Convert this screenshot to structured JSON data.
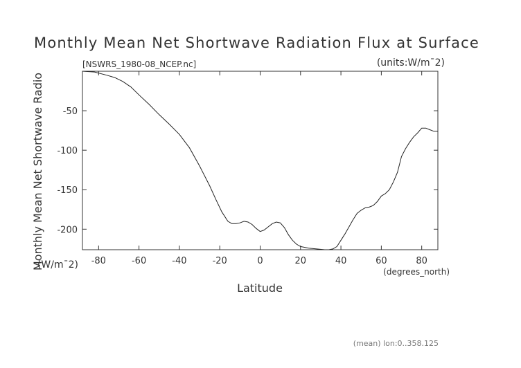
{
  "page": {
    "title": "Monthly Mean Net Shortwave Radiation Flux at Surface",
    "source_file": "[NSWRS_1980-08_NCEP.nc]",
    "units_note": "(units:W/m¯2)",
    "footer_note": "(mean) lon:0..358.125"
  },
  "chart_data": {
    "type": "line",
    "title": "Monthly Mean Net Shortwave Radiation Flux at Surface",
    "xlabel": "Latitude",
    "xunits": "(degrees_north)",
    "ylabel": "Monthly Mean Net Shortwave Radio",
    "yunits": "(W/m¯2)",
    "xlim": [
      -88,
      88
    ],
    "ylim": [
      -226,
      0
    ],
    "x_ticks": [
      -80,
      -60,
      -40,
      -20,
      0,
      20,
      40,
      60,
      80
    ],
    "x_tick_labels": [
      "-80",
      "-60",
      "-40",
      "-20",
      "0",
      "20",
      "40",
      "60",
      "80"
    ],
    "y_ticks": [
      -50,
      -100,
      -150,
      -200
    ],
    "y_tick_labels": [
      "-50",
      "-100",
      "-150",
      "-200"
    ],
    "grid": false,
    "series": [
      {
        "x": [
          -88,
          -82,
          -76,
          -72,
          -68,
          -64,
          -60,
          -55,
          -50,
          -45,
          -40,
          -35,
          -30,
          -25,
          -22,
          -19,
          -16,
          -14,
          -12,
          -10,
          -8,
          -6,
          -4,
          -2,
          0,
          2,
          4,
          6,
          8,
          10,
          12,
          14,
          16,
          18,
          20,
          24,
          28,
          32,
          34,
          36,
          38,
          40,
          42,
          44,
          46,
          48,
          50,
          52,
          54,
          56,
          58,
          60,
          62,
          64,
          66,
          68,
          70,
          72,
          74,
          76,
          78,
          80,
          82,
          84,
          86,
          88
        ],
        "y": [
          0,
          -1,
          -5,
          -8,
          -13,
          -20,
          -30,
          -42,
          -55,
          -67,
          -80,
          -97,
          -120,
          -145,
          -162,
          -178,
          -190,
          -193,
          -193,
          -192,
          -190,
          -191,
          -194,
          -199,
          -203,
          -201,
          -197,
          -193,
          -191,
          -192,
          -198,
          -207,
          -214,
          -219,
          -222,
          -224,
          -225,
          -226,
          -226,
          -225,
          -222,
          -214,
          -206,
          -197,
          -188,
          -180,
          -176,
          -173,
          -172,
          -170,
          -165,
          -158,
          -155,
          -150,
          -140,
          -128,
          -108,
          -98,
          -90,
          -83,
          -78,
          -72,
          -72,
          -74,
          -76,
          -76
        ]
      }
    ]
  }
}
